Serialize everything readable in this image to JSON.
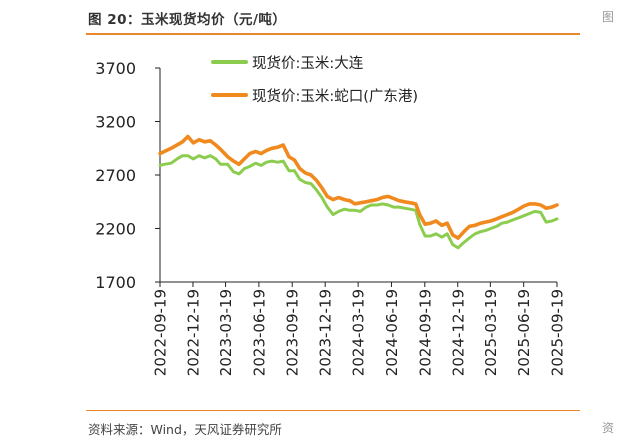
{
  "header": {
    "figure_title": "图 20：玉米现货均价（元/吨）",
    "edge_fragment_top": "图",
    "edge_fragment_bottom": "资"
  },
  "footer": {
    "source": "资料来源：Wind，天风证券研究所"
  },
  "colors": {
    "accent_rule": "#e8872b",
    "series_dalian": "#8ccd4f",
    "series_shekou": "#f08a1e"
  },
  "chart_data": {
    "type": "line",
    "title": "",
    "xlabel": "",
    "ylabel": "",
    "ylim": [
      1700,
      3700
    ],
    "yticks": [
      1700,
      2200,
      2700,
      3200,
      3700
    ],
    "xlim": [
      "2022-09-19",
      "2025-09-19"
    ],
    "xticks": [
      "2022-09-19",
      "2022-12-19",
      "2023-03-19",
      "2023-06-19",
      "2023-09-19",
      "2023-12-19",
      "2024-03-19",
      "2024-06-19",
      "2024-09-19",
      "2024-12-19",
      "2025-03-19",
      "2025-06-19",
      "2025-09-19"
    ],
    "grid": false,
    "legend_position": "top-center",
    "series": [
      {
        "name": "现货价:玉米:大连",
        "color": "#8ccd4f",
        "x": [
          "2022-09-19",
          "2022-10-01",
          "2022-10-20",
          "2022-11-05",
          "2022-11-20",
          "2022-12-05",
          "2022-12-20",
          "2023-01-05",
          "2023-01-20",
          "2023-02-05",
          "2023-02-20",
          "2023-03-05",
          "2023-03-25",
          "2023-04-10",
          "2023-04-25",
          "2023-05-10",
          "2023-05-25",
          "2023-06-10",
          "2023-06-25",
          "2023-07-10",
          "2023-07-25",
          "2023-08-10",
          "2023-08-25",
          "2023-09-10",
          "2023-09-25",
          "2023-10-10",
          "2023-10-25",
          "2023-11-10",
          "2023-11-25",
          "2023-12-10",
          "2023-12-25",
          "2024-01-10",
          "2024-01-25",
          "2024-02-10",
          "2024-02-25",
          "2024-03-10",
          "2024-03-25",
          "2024-04-10",
          "2024-04-25",
          "2024-05-10",
          "2024-05-25",
          "2024-06-10",
          "2024-06-25",
          "2024-07-10",
          "2024-07-25",
          "2024-08-10",
          "2024-08-25",
          "2024-09-05",
          "2024-09-20",
          "2024-10-05",
          "2024-10-20",
          "2024-11-05",
          "2024-11-20",
          "2024-12-05",
          "2024-12-20",
          "2025-01-05",
          "2025-01-20",
          "2025-02-05",
          "2025-02-20",
          "2025-03-05",
          "2025-03-20",
          "2025-04-05",
          "2025-04-20",
          "2025-05-05",
          "2025-05-20",
          "2025-06-05",
          "2025-06-20",
          "2025-07-05",
          "2025-07-20",
          "2025-08-05",
          "2025-08-20",
          "2025-09-05",
          "2025-09-19"
        ],
        "values": [
          2790,
          2800,
          2810,
          2850,
          2880,
          2880,
          2850,
          2880,
          2860,
          2880,
          2850,
          2800,
          2800,
          2730,
          2710,
          2760,
          2780,
          2810,
          2790,
          2820,
          2830,
          2820,
          2830,
          2740,
          2740,
          2660,
          2630,
          2620,
          2560,
          2490,
          2400,
          2330,
          2360,
          2380,
          2370,
          2370,
          2360,
          2400,
          2420,
          2420,
          2430,
          2420,
          2400,
          2400,
          2390,
          2380,
          2370,
          2240,
          2130,
          2130,
          2150,
          2120,
          2150,
          2050,
          2020,
          2070,
          2110,
          2150,
          2170,
          2180,
          2200,
          2220,
          2250,
          2260,
          2280,
          2300,
          2320,
          2340,
          2360,
          2350,
          2260,
          2270,
          2290
        ]
      },
      {
        "name": "现货价:玉米:蛇口(广东港)",
        "color": "#f08a1e",
        "x": [
          "2022-09-19",
          "2022-10-01",
          "2022-10-20",
          "2022-11-05",
          "2022-11-20",
          "2022-12-05",
          "2022-12-20",
          "2023-01-05",
          "2023-01-20",
          "2023-02-05",
          "2023-02-20",
          "2023-03-05",
          "2023-03-25",
          "2023-04-10",
          "2023-04-25",
          "2023-05-10",
          "2023-05-25",
          "2023-06-10",
          "2023-06-25",
          "2023-07-10",
          "2023-07-25",
          "2023-08-10",
          "2023-08-25",
          "2023-09-10",
          "2023-09-25",
          "2023-10-10",
          "2023-10-25",
          "2023-11-10",
          "2023-11-25",
          "2023-12-10",
          "2023-12-25",
          "2024-01-10",
          "2024-01-25",
          "2024-02-10",
          "2024-02-25",
          "2024-03-10",
          "2024-03-25",
          "2024-04-10",
          "2024-04-25",
          "2024-05-10",
          "2024-05-25",
          "2024-06-10",
          "2024-06-25",
          "2024-07-10",
          "2024-07-25",
          "2024-08-10",
          "2024-08-25",
          "2024-09-05",
          "2024-09-20",
          "2024-10-05",
          "2024-10-20",
          "2024-11-05",
          "2024-11-20",
          "2024-12-05",
          "2024-12-20",
          "2025-01-05",
          "2025-01-20",
          "2025-02-05",
          "2025-02-20",
          "2025-03-05",
          "2025-03-20",
          "2025-04-05",
          "2025-04-20",
          "2025-05-05",
          "2025-05-20",
          "2025-06-05",
          "2025-06-20",
          "2025-07-05",
          "2025-07-20",
          "2025-08-05",
          "2025-08-20",
          "2025-09-05",
          "2025-09-19"
        ],
        "values": [
          2900,
          2920,
          2950,
          2980,
          3010,
          3060,
          3000,
          3030,
          3010,
          3020,
          2980,
          2940,
          2870,
          2830,
          2800,
          2850,
          2900,
          2920,
          2900,
          2930,
          2950,
          2960,
          2980,
          2870,
          2840,
          2760,
          2720,
          2700,
          2650,
          2580,
          2500,
          2470,
          2490,
          2470,
          2460,
          2430,
          2440,
          2450,
          2460,
          2470,
          2490,
          2500,
          2480,
          2460,
          2450,
          2440,
          2430,
          2330,
          2240,
          2250,
          2270,
          2230,
          2250,
          2140,
          2110,
          2170,
          2220,
          2230,
          2250,
          2260,
          2270,
          2290,
          2310,
          2330,
          2350,
          2380,
          2410,
          2430,
          2430,
          2420,
          2390,
          2400,
          2420
        ]
      }
    ]
  }
}
